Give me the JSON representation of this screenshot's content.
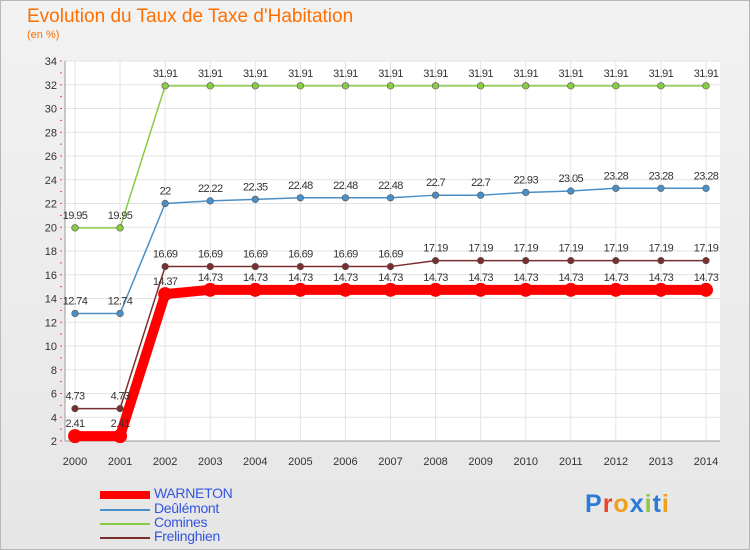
{
  "header": {
    "title": "Evolution du Taux de Taxe d'Habitation",
    "subtitle": "(en %)"
  },
  "logo": {
    "text": "Proxiti",
    "colors": [
      "#2a7ad8",
      "#e8462c",
      "#f0a020",
      "#2a7ad8",
      "#8dc63f",
      "#2a7ad8",
      "#f0a020"
    ]
  },
  "chart_data": {
    "type": "line",
    "title": "Evolution du Taux de Taxe d'Habitation",
    "ylabel": "(en %)",
    "xlabel": "",
    "x": [
      "2000",
      "2001",
      "2002",
      "2003",
      "2004",
      "2005",
      "2006",
      "2007",
      "2008",
      "2009",
      "2010",
      "2011",
      "2012",
      "2013",
      "2014"
    ],
    "ylim": [
      2,
      34
    ],
    "yticks": [
      2,
      4,
      6,
      8,
      10,
      12,
      14,
      16,
      18,
      20,
      22,
      24,
      26,
      28,
      30,
      32,
      34
    ],
    "grid": true,
    "legend_position": "bottom-left",
    "series": [
      {
        "name": "WARNETON",
        "color": "#ff0000",
        "values": [
          2.41,
          2.41,
          14.37,
          14.73,
          14.73,
          14.73,
          14.73,
          14.73,
          14.73,
          14.73,
          14.73,
          14.73,
          14.73,
          14.73,
          14.73
        ],
        "labels": [
          "2.41",
          "2.41",
          "14.37",
          "14.73",
          "14.73",
          "14.73",
          "14.73",
          "14.73",
          "14.73",
          "14.73",
          "14.73",
          "14.73",
          "14.73",
          "14.73",
          "14.73"
        ]
      },
      {
        "name": "Deûlémont",
        "color": "#4a90c8",
        "values": [
          12.74,
          12.74,
          22,
          22.22,
          22.35,
          22.48,
          22.48,
          22.48,
          22.7,
          22.7,
          22.93,
          23.05,
          23.28,
          23.28,
          23.28
        ],
        "labels": [
          "12.74",
          "12.74",
          "22",
          "22.22",
          "22.35",
          "22.48",
          "22.48",
          "22.48",
          "22.7",
          "22.7",
          "22.93",
          "23.05",
          "23.28",
          "23.28",
          "23.28"
        ]
      },
      {
        "name": "Comines",
        "color": "#88cc44",
        "values": [
          19.95,
          19.95,
          31.91,
          31.91,
          31.91,
          31.91,
          31.91,
          31.91,
          31.91,
          31.91,
          31.91,
          31.91,
          31.91,
          31.91,
          31.91
        ],
        "labels": [
          "19.95",
          "19.95",
          "31.91",
          "31.91",
          "31.91",
          "31.91",
          "31.91",
          "31.91",
          "31.91",
          "31.91",
          "31.91",
          "31.91",
          "31.91",
          "31.91",
          "31.91"
        ]
      },
      {
        "name": "Frelinghien",
        "color": "#7a2f2f",
        "values": [
          4.73,
          4.73,
          16.69,
          16.69,
          16.69,
          16.69,
          16.69,
          16.69,
          17.19,
          17.19,
          17.19,
          17.19,
          17.19,
          17.19,
          17.19
        ],
        "labels": [
          "4.73",
          "4.73",
          "16.69",
          "16.69",
          "16.69",
          "16.69",
          "16.69",
          "16.69",
          "17.19",
          "17.19",
          "17.19",
          "17.19",
          "17.19",
          "17.19",
          "17.19"
        ]
      }
    ]
  }
}
